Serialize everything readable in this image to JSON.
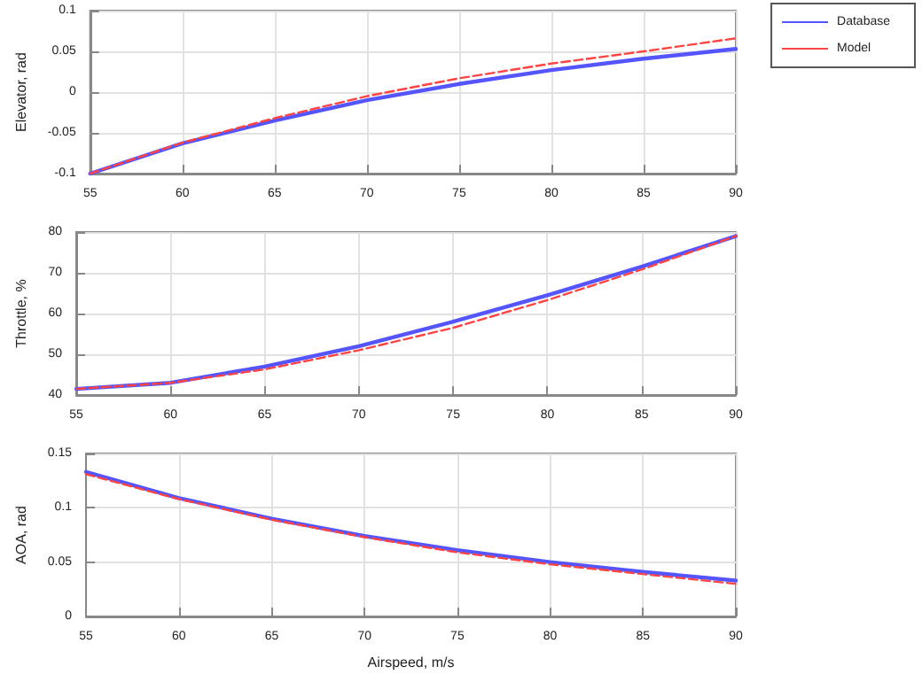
{
  "chart_data": [
    {
      "type": "line",
      "ylabel": "Elevator, rad",
      "x": [
        55,
        60,
        65,
        70,
        75,
        80,
        85,
        90
      ],
      "xlim": [
        55,
        90
      ],
      "xticks": [
        55,
        60,
        65,
        70,
        75,
        80,
        85,
        90
      ],
      "ylim": [
        -0.1,
        0.1
      ],
      "yticks": [
        -0.1,
        -0.05,
        0,
        0.05,
        0.1
      ],
      "grid": true,
      "legend": "top right",
      "marker": "none",
      "series": [
        {
          "name": "Database",
          "color": "#5555ff",
          "line_style": "solid",
          "values": [
            -0.1,
            -0.063,
            -0.035,
            -0.01,
            0.01,
            0.027,
            0.041,
            0.053
          ]
        },
        {
          "name": "Model",
          "color": "#ff4444",
          "line_style": "dashed",
          "values": [
            -0.1,
            -0.062,
            -0.032,
            -0.005,
            0.017,
            0.035,
            0.05,
            0.066
          ]
        }
      ]
    },
    {
      "type": "line",
      "ylabel": "Throttle, %",
      "x": [
        55,
        60,
        65,
        70,
        75,
        80,
        85,
        90
      ],
      "xlim": [
        55,
        90
      ],
      "xticks": [
        55,
        60,
        65,
        70,
        75,
        80,
        85,
        90
      ],
      "ylim": [
        40,
        80
      ],
      "yticks": [
        40,
        50,
        60,
        70,
        80
      ],
      "grid": true,
      "legend": false,
      "marker": "none",
      "series": [
        {
          "color": "#5555ff",
          "line_style": "solid",
          "values": [
            41.5,
            43,
            47,
            52,
            58,
            64.5,
            71.5,
            79
          ]
        },
        {
          "color": "#ff4444",
          "line_style": "dashed",
          "values": [
            41.5,
            43,
            46.3,
            51,
            56.5,
            63.3,
            70.8,
            79
          ]
        }
      ]
    },
    {
      "type": "line",
      "ylabel": "AOA, rad",
      "xlabel": "Airspeed, m/s",
      "x": [
        55,
        60,
        65,
        70,
        75,
        80,
        85,
        90
      ],
      "xlim": [
        55,
        90
      ],
      "xticks": [
        55,
        60,
        65,
        70,
        75,
        80,
        85,
        90
      ],
      "ylim": [
        0,
        0.15
      ],
      "yticks": [
        0,
        0.05,
        0.1,
        0.15
      ],
      "grid": true,
      "legend": false,
      "marker": "none",
      "series": [
        {
          "color": "#5555ff",
          "line_style": "solid",
          "values": [
            0.133,
            0.109,
            0.09,
            0.074,
            0.061,
            0.05,
            0.041,
            0.033
          ]
        },
        {
          "color": "#ff4444",
          "line_style": "dashed",
          "values": [
            0.131,
            0.108,
            0.089,
            0.073,
            0.059,
            0.048,
            0.039,
            0.03
          ]
        }
      ]
    }
  ]
}
